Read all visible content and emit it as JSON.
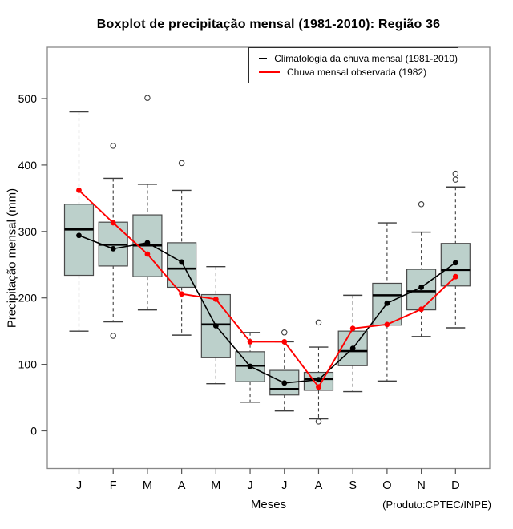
{
  "title": "Boxplot de precipitação mensal (1981-2010): Região 36",
  "footer": "(Produto:CPTEC/INPE)",
  "legend": [
    {
      "label": "Climatologia da chuva mensal (1981-2010)",
      "color": "#000000"
    },
    {
      "label": "Chuva mensal observada (1982)",
      "color": "#ff0000"
    }
  ],
  "chart_data": {
    "type": "boxplot+line",
    "title": "Boxplot de precipitação mensal (1981-2010): Região 36",
    "xlabel": "Meses",
    "ylabel": "Precipitação mensal (mm)",
    "categories": [
      "J",
      "F",
      "M",
      "A",
      "M",
      "J",
      "J",
      "A",
      "S",
      "O",
      "N",
      "D"
    ],
    "yticks": [
      0,
      100,
      200,
      300,
      400,
      500
    ],
    "ylim": [
      -57,
      577
    ],
    "grid": false,
    "legend_position": "top-right",
    "box_fill": "#bcd0cb",
    "box_border": "#4a4a4a",
    "whisker_color": "#3f3f3f",
    "frame_color": "#888888",
    "boxes": [
      {
        "month": "J",
        "low": 150,
        "q1": 234,
        "median": 303,
        "q3": 341,
        "high": 480,
        "outliers": []
      },
      {
        "month": "F",
        "low": 164,
        "q1": 248,
        "median": 280,
        "q3": 314,
        "high": 380,
        "outliers": [
          429,
          143
        ]
      },
      {
        "month": "M",
        "low": 182,
        "q1": 232,
        "median": 279,
        "q3": 325,
        "high": 371,
        "outliers": [
          501
        ]
      },
      {
        "month": "A",
        "low": 144,
        "q1": 216,
        "median": 244,
        "q3": 283,
        "high": 362,
        "outliers": [
          403
        ]
      },
      {
        "month": "M",
        "low": 71,
        "q1": 110,
        "median": 160,
        "q3": 205,
        "high": 247,
        "outliers": []
      },
      {
        "month": "J",
        "low": 43,
        "q1": 74,
        "median": 98,
        "q3": 119,
        "high": 148,
        "outliers": []
      },
      {
        "month": "J",
        "low": 30,
        "q1": 54,
        "median": 63,
        "q3": 91,
        "high": 134,
        "outliers": [
          148
        ]
      },
      {
        "month": "A",
        "low": 18,
        "q1": 61,
        "median": 78,
        "q3": 88,
        "high": 126,
        "outliers": [
          163,
          14
        ]
      },
      {
        "month": "S",
        "low": 59,
        "q1": 98,
        "median": 120,
        "q3": 150,
        "high": 204,
        "outliers": []
      },
      {
        "month": "O",
        "low": 75,
        "q1": 159,
        "median": 204,
        "q3": 222,
        "high": 313,
        "outliers": []
      },
      {
        "month": "N",
        "low": 142,
        "q1": 182,
        "median": 210,
        "q3": 243,
        "high": 299,
        "outliers": [
          341
        ]
      },
      {
        "month": "D",
        "low": 155,
        "q1": 218,
        "median": 242,
        "q3": 282,
        "high": 367,
        "outliers": [
          387,
          378
        ]
      }
    ],
    "series": [
      {
        "name": "Climatologia da chuva mensal (1981-2010)",
        "color": "#000000",
        "values": [
          294,
          274,
          283,
          254,
          158,
          97,
          72,
          77,
          124,
          192,
          216,
          253
        ]
      },
      {
        "name": "Chuva mensal observada (1982)",
        "color": "#ff0000",
        "values": [
          362,
          313,
          266,
          206,
          198,
          134,
          134,
          66,
          154,
          160,
          183,
          232
        ]
      }
    ]
  }
}
